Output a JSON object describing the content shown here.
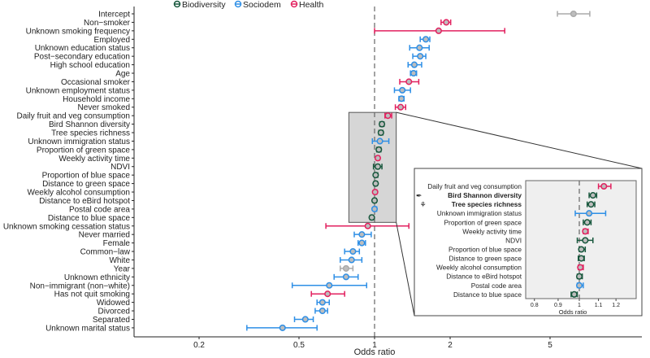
{
  "chart_data": {
    "type": "scatter",
    "subtype": "forest-plot",
    "xlabel": "Odds ratio",
    "xscale": "log",
    "xlim": [
      0.125,
      9
    ],
    "xticks": [
      0.2,
      0.5,
      1,
      2,
      5
    ],
    "xtick_labels": [
      "0.2",
      "0.5",
      "1",
      "2",
      "5"
    ],
    "reference_line": 1,
    "legend": {
      "placement": "top-right",
      "entries": [
        {
          "name": "Biodiversity",
          "color": "#17573c"
        },
        {
          "name": "Sociodem",
          "color": "#2e8fe6"
        },
        {
          "name": "Health",
          "color": "#e2215f"
        }
      ]
    },
    "group_colors": {
      "Biodiversity": "#17573c",
      "Sociodem": "#2e8fe6",
      "Health": "#e2215f",
      "Other": "#aaaaaa"
    },
    "rows": [
      {
        "label": "Intercept",
        "group": "Other",
        "or": 6.2,
        "lo": 5.35,
        "hi": 7.2
      },
      {
        "label": "Non−smoker",
        "group": "Health",
        "or": 1.93,
        "lo": 1.84,
        "hi": 2.01
      },
      {
        "label": "Unknown smoking frequency",
        "group": "Health",
        "or": 1.8,
        "lo": 1.0,
        "hi": 3.3
      },
      {
        "label": "Employed",
        "group": "Sociodem",
        "or": 1.6,
        "lo": 1.52,
        "hi": 1.66
      },
      {
        "label": "Unknown education status",
        "group": "Sociodem",
        "or": 1.51,
        "lo": 1.38,
        "hi": 1.65
      },
      {
        "label": "Post−secondary education",
        "group": "Sociodem",
        "or": 1.52,
        "lo": 1.42,
        "hi": 1.6
      },
      {
        "label": "High school education",
        "group": "Sociodem",
        "or": 1.44,
        "lo": 1.36,
        "hi": 1.54
      },
      {
        "label": "Age",
        "group": "Sociodem",
        "or": 1.43,
        "lo": 1.39,
        "hi": 1.47
      },
      {
        "label": "Occasional smoker",
        "group": "Health",
        "or": 1.37,
        "lo": 1.26,
        "hi": 1.5
      },
      {
        "label": "Unknown employment status",
        "group": "Sociodem",
        "or": 1.29,
        "lo": 1.2,
        "hi": 1.39
      },
      {
        "label": "Household income",
        "group": "Sociodem",
        "or": 1.28,
        "lo": 1.25,
        "hi": 1.31
      },
      {
        "label": "Never smoked",
        "group": "Health",
        "or": 1.27,
        "lo": 1.21,
        "hi": 1.33
      },
      {
        "label": "Daily fruit and veg consumption",
        "group": "Health",
        "or": 1.13,
        "lo": 1.1,
        "hi": 1.17,
        "inset": true
      },
      {
        "label": "Bird Shannon diversity",
        "group": "Biodiversity",
        "or": 1.07,
        "lo": 1.05,
        "hi": 1.09,
        "inset": true,
        "bold": true,
        "icon": "bird"
      },
      {
        "label": "Tree species richness",
        "group": "Biodiversity",
        "or": 1.06,
        "lo": 1.04,
        "hi": 1.08,
        "inset": true,
        "bold": true,
        "icon": "tree"
      },
      {
        "label": "Unknown immigration status",
        "group": "Sociodem",
        "or": 1.05,
        "lo": 0.98,
        "hi": 1.14,
        "inset": true
      },
      {
        "label": "Proportion of green space",
        "group": "Biodiversity",
        "or": 1.04,
        "lo": 1.02,
        "hi": 1.06,
        "inset": true
      },
      {
        "label": "Weekly activity time",
        "group": "Health",
        "or": 1.03,
        "lo": 1.02,
        "hi": 1.045,
        "inset": true
      },
      {
        "label": "NDVI",
        "group": "Biodiversity",
        "or": 1.03,
        "lo": 0.99,
        "hi": 1.07,
        "inset": true
      },
      {
        "label": "Proportion of blue space",
        "group": "Biodiversity",
        "or": 1.01,
        "lo": 1.0,
        "hi": 1.03,
        "inset": true
      },
      {
        "label": "Distance to green space",
        "group": "Biodiversity",
        "or": 1.01,
        "lo": 0.995,
        "hi": 1.025,
        "inset": true
      },
      {
        "label": "Weekly alcohol consumption",
        "group": "Health",
        "or": 1.005,
        "lo": 0.995,
        "hi": 1.02,
        "inset": true
      },
      {
        "label": "Distance to eBird hotspot",
        "group": "Biodiversity",
        "or": 1.0,
        "lo": 0.99,
        "hi": 1.015,
        "inset": true
      },
      {
        "label": "Postal code area",
        "group": "Sociodem",
        "or": 1.0,
        "lo": 0.99,
        "hi": 1.02,
        "inset": true
      },
      {
        "label": "Distance to blue space",
        "group": "Biodiversity",
        "or": 0.975,
        "lo": 0.96,
        "hi": 0.99,
        "inset": true
      },
      {
        "label": "Unknown smoking cessation status",
        "group": "Health",
        "or": 0.94,
        "lo": 0.64,
        "hi": 1.37
      },
      {
        "label": "Never married",
        "group": "Sociodem",
        "or": 0.89,
        "lo": 0.83,
        "hi": 0.97
      },
      {
        "label": "Female",
        "group": "Sociodem",
        "or": 0.89,
        "lo": 0.86,
        "hi": 0.92
      },
      {
        "label": "Common−law",
        "group": "Sociodem",
        "or": 0.82,
        "lo": 0.76,
        "hi": 0.87
      },
      {
        "label": "White",
        "group": "Sociodem",
        "or": 0.81,
        "lo": 0.73,
        "hi": 0.89
      },
      {
        "label": "Year",
        "group": "Other",
        "or": 0.77,
        "lo": 0.73,
        "hi": 0.82
      },
      {
        "label": "Unknown ethnicity",
        "group": "Sociodem",
        "or": 0.77,
        "lo": 0.69,
        "hi": 0.86
      },
      {
        "label": "Non−immigrant (non−white)",
        "group": "Sociodem",
        "or": 0.66,
        "lo": 0.47,
        "hi": 0.93
      },
      {
        "label": "Has not quit smoking",
        "group": "Health",
        "or": 0.65,
        "lo": 0.56,
        "hi": 0.76
      },
      {
        "label": "Widowed",
        "group": "Sociodem",
        "or": 0.62,
        "lo": 0.59,
        "hi": 0.66
      },
      {
        "label": "Divorced",
        "group": "Sociodem",
        "or": 0.62,
        "lo": 0.58,
        "hi": 0.65
      },
      {
        "label": "Separated",
        "group": "Sociodem",
        "or": 0.53,
        "lo": 0.48,
        "hi": 0.57
      },
      {
        "label": "Unknown marital status",
        "group": "Sociodem",
        "or": 0.43,
        "lo": 0.31,
        "hi": 0.59
      }
    ],
    "inset": {
      "xlabel": "Odds ratio",
      "xscale": "log",
      "xlim": [
        0.75,
        1.3
      ],
      "highlight_range": [
        0.79,
        1.22
      ],
      "xticks": [
        0.8,
        0.9,
        1,
        1.1,
        1.2
      ],
      "xtick_labels": [
        "0.8",
        "0.9",
        "1",
        "1.1",
        "1.2"
      ]
    }
  }
}
